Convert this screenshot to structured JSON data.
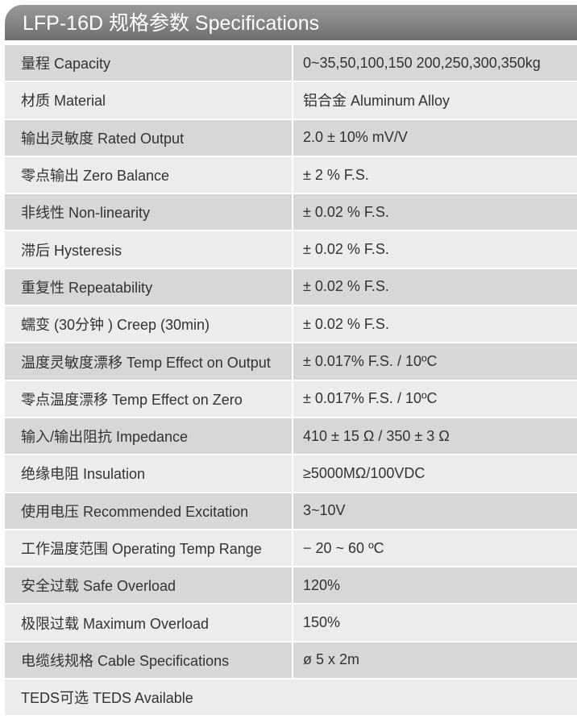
{
  "header": {
    "title": "LFP-16D 规格参数 Specifications"
  },
  "table": {
    "rows": [
      [
        "量程 Capacity",
        "0~35,50,100,150 200,250,300,350kg"
      ],
      [
        "材质 Material",
        "铝合金 Aluminum Alloy"
      ],
      [
        "输出灵敏度 Rated Output",
        "2.0 ± 10% mV/V"
      ],
      [
        "零点输出  Zero Balance",
        "± 2 % F.S."
      ],
      [
        "非线性 Non-linearity",
        "± 0.02 % F.S."
      ],
      [
        "滞后 Hysteresis",
        "± 0.02 % F.S."
      ],
      [
        "重复性 Repeatability",
        "± 0.02 % F.S."
      ],
      [
        "蠕变 (30分钟 ) Creep (30min)",
        "± 0.02 % F.S."
      ],
      [
        "温度灵敏度漂移 Temp Effect on Output",
        "± 0.017% F.S. / 10ºC"
      ],
      [
        "零点温度漂移 Temp Effect on Zero",
        "± 0.017% F.S. / 10ºC"
      ],
      [
        "输入/输出阻抗 Impedance",
        "410 ± 15 Ω  / 350 ± 3 Ω"
      ],
      [
        "绝缘电阻  Insulation",
        "≥5000MΩ/100VDC"
      ],
      [
        "使用电压 Recommended Excitation",
        "3~10V"
      ],
      [
        "工作温度范围 Operating Temp  Range",
        "− 20 ~ 60 ºC"
      ],
      [
        "安全过载 Safe Overload",
        "120%"
      ],
      [
        "极限过载 Maximum Overload",
        "150%"
      ],
      [
        "电缆线规格 Cable Specifications",
        "ø  5  x 2m"
      ],
      [
        "TEDS可选 TEDS Available"
      ]
    ]
  }
}
